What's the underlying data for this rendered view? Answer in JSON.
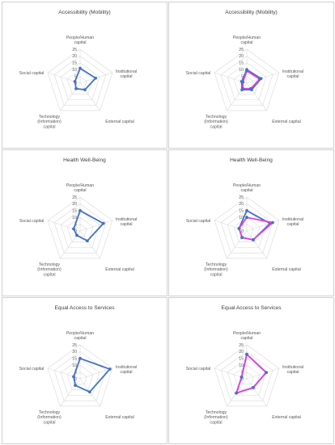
{
  "chart_data": [
    {
      "type": "radar",
      "title": "Accessibility (Mobility)",
      "axes": [
        "People/Human capital",
        "Institutional capital",
        "External capital",
        "Technology (Information) capital",
        "Social capital"
      ],
      "rlim": [
        0,
        25
      ],
      "ticks": [
        0,
        5,
        10,
        15,
        20,
        25
      ],
      "grid": true,
      "series": [
        {
          "values": [
            11,
            12,
            6,
            5,
            4
          ],
          "color": "#4472c4",
          "marker_color": "#4472c4"
        }
      ]
    },
    {
      "type": "radar",
      "title": "Accessibility (Mobility)",
      "axes": [
        "People/Human capital",
        "Institutional capital",
        "External capital",
        "Technology (Information) capital",
        "Social capital"
      ],
      "rlim": [
        0,
        25
      ],
      "ticks": [
        0,
        5,
        10,
        15,
        20,
        25
      ],
      "grid": true,
      "series": [
        {
          "values": [
            10,
            11,
            6,
            6,
            4
          ],
          "color": "#4472c4",
          "marker_color": "#4472c4"
        },
        {
          "values": [
            9,
            10,
            5,
            5,
            3
          ],
          "color": "#e040e0",
          "marker_color": "#4472c4"
        }
      ]
    },
    {
      "type": "radar",
      "title": "Health Well-Being",
      "axes": [
        "People/Human capital",
        "Institutional capital",
        "External capital",
        "Technology (Information) capital",
        "Social capital"
      ],
      "rlim": [
        0,
        25
      ],
      "ticks": [
        0,
        5,
        10,
        15,
        20,
        25
      ],
      "grid": true,
      "series": [
        {
          "values": [
            15,
            18,
            9,
            4,
            5
          ],
          "color": "#4472c4",
          "marker_color": "#4472c4"
        }
      ]
    },
    {
      "type": "radar",
      "title": "Health Well-Being",
      "axes": [
        "People/Human capital",
        "Institutional capital",
        "External capital",
        "Technology (Information) capital",
        "Social capital"
      ],
      "rlim": [
        0,
        25
      ],
      "ticks": [
        0,
        5,
        10,
        15,
        20,
        25
      ],
      "grid": true,
      "series": [
        {
          "values": [
            15,
            18,
            8,
            6,
            6
          ],
          "color": "#4472c4",
          "marker_color": "#4472c4"
        },
        {
          "values": [
            10,
            20,
            8,
            6,
            6
          ],
          "color": "#e040e0",
          "marker_color": "#4472c4"
        }
      ]
    },
    {
      "type": "radar",
      "title": "Equal Access to Services",
      "axes": [
        "People/Human capital",
        "Institutional capital",
        "External capital",
        "Technology (Information) capital",
        "Social capital"
      ],
      "rlim": [
        0,
        25
      ],
      "ticks": [
        0,
        5,
        10,
        15,
        20,
        25
      ],
      "grid": true,
      "series": [
        {
          "values": [
            15,
            23,
            12,
            6,
            5
          ],
          "color": "#4472c4",
          "marker_color": "#4472c4"
        }
      ]
    },
    {
      "type": "radar",
      "title": "Equal Access to Services",
      "axes": [
        "People/Human capital",
        "Institutional capital",
        "External capital",
        "Technology (Information) capital",
        "Social capital"
      ],
      "rlim": [
        0,
        25
      ],
      "ticks": [
        0,
        5,
        10,
        15,
        20,
        25
      ],
      "grid": true,
      "series": [
        {
          "values": [
            18,
            15,
            8,
            13,
            4
          ],
          "color": "#4472c4",
          "marker_color": "#4472c4"
        },
        {
          "values": [
            18,
            15,
            8,
            13,
            4
          ],
          "color": "#e040e0",
          "marker_color": "#4472c4"
        }
      ]
    }
  ]
}
